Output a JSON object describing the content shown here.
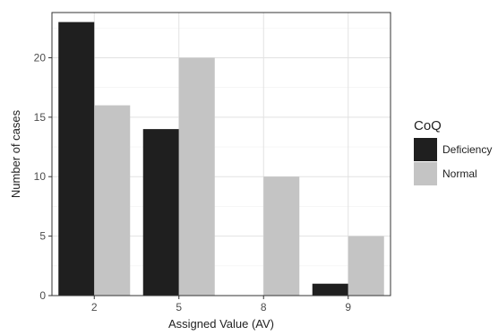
{
  "chart_data": {
    "type": "bar",
    "categories": [
      "2",
      "5",
      "8",
      "9"
    ],
    "series": [
      {
        "name": "Deficiency",
        "values": [
          23,
          14,
          0,
          1
        ],
        "color": "#1f1f1f"
      },
      {
        "name": "Normal",
        "values": [
          16,
          20,
          10,
          5
        ],
        "color": "#c4c4c4"
      }
    ],
    "xlabel": "Assigned Value (AV)",
    "ylabel": "Number of cases",
    "ylim": [
      0,
      23.8
    ],
    "yticks": [
      0,
      5,
      10,
      15,
      20
    ],
    "grid": true,
    "legend": {
      "title": "CoQ",
      "placement": "right"
    }
  }
}
